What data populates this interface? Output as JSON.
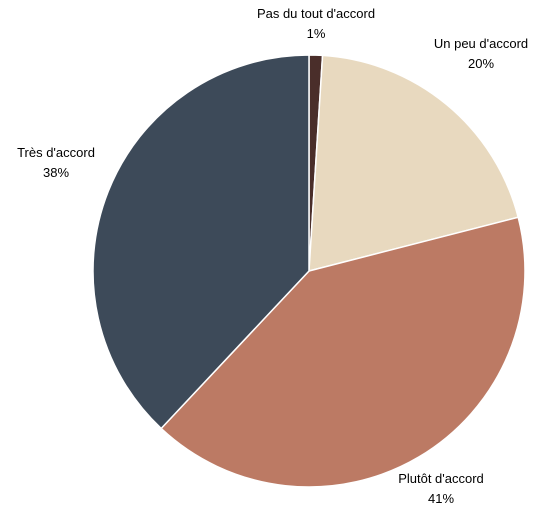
{
  "chart_data": {
    "type": "pie",
    "title": "",
    "start_angle_deg": 0,
    "direction": "clockwise",
    "slices": [
      {
        "label": "Pas du tout d'accord",
        "value": 1,
        "value_label": "1%",
        "color": "#4a2e2a"
      },
      {
        "label": "Un peu d'accord",
        "value": 20,
        "value_label": "20%",
        "color": "#e8d9bf"
      },
      {
        "label": "Plutôt d'accord",
        "value": 41,
        "value_label": "41%",
        "color": "#bc7a64"
      },
      {
        "label": "Très d'accord",
        "value": 38,
        "value_label": "38%",
        "color": "#3d4a59"
      }
    ],
    "legend": "none",
    "label_position": "outside"
  }
}
